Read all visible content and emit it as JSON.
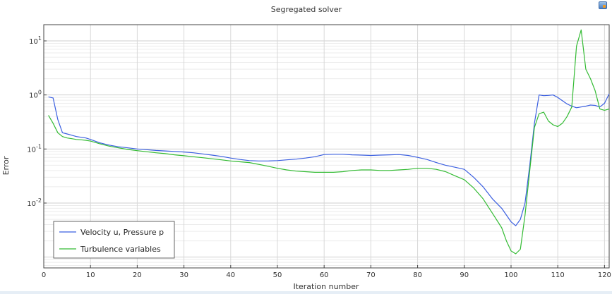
{
  "chart_data": {
    "type": "line",
    "title": "Segregated solver",
    "xlabel": "Iteration number",
    "ylabel": "Error",
    "xlim": [
      0,
      121
    ],
    "ylim_log10": [
      -3.2,
      1.3
    ],
    "yscale": "log",
    "grid": true,
    "legend_position": "bottom-left",
    "x_ticks": [
      "0",
      "10",
      "20",
      "30",
      "40",
      "50",
      "60",
      "70",
      "80",
      "90",
      "100",
      "110",
      "120"
    ],
    "y_ticks": [
      {
        "base": "10",
        "exp": "1",
        "value": 10
      },
      {
        "base": "10",
        "exp": "0",
        "value": 1
      },
      {
        "base": "10",
        "exp": "-1",
        "value": 0.1
      },
      {
        "base": "10",
        "exp": "-2",
        "value": 0.01
      }
    ],
    "series": [
      {
        "name": "Velocity u, Pressure p",
        "color": "#3b5fe0",
        "x": [
          1,
          2,
          3,
          4,
          5,
          6,
          7,
          8,
          9,
          10,
          12,
          14,
          16,
          18,
          20,
          22,
          24,
          26,
          28,
          30,
          32,
          34,
          36,
          38,
          40,
          42,
          44,
          46,
          48,
          50,
          52,
          54,
          56,
          58,
          60,
          62,
          64,
          66,
          68,
          70,
          72,
          74,
          76,
          78,
          80,
          82,
          84,
          86,
          88,
          90,
          92,
          94,
          96,
          98,
          99,
          100,
          101,
          102,
          103,
          104,
          105,
          106,
          107,
          108,
          109,
          110,
          111,
          112,
          113,
          114,
          115,
          116,
          117,
          118,
          119,
          120,
          121
        ],
        "y": [
          0.92,
          0.88,
          0.35,
          0.2,
          0.19,
          0.18,
          0.17,
          0.165,
          0.16,
          0.15,
          0.13,
          0.118,
          0.11,
          0.105,
          0.1,
          0.097,
          0.094,
          0.092,
          0.09,
          0.088,
          0.085,
          0.081,
          0.077,
          0.073,
          0.068,
          0.064,
          0.061,
          0.06,
          0.06,
          0.061,
          0.063,
          0.065,
          0.068,
          0.072,
          0.079,
          0.08,
          0.08,
          0.078,
          0.077,
          0.076,
          0.077,
          0.078,
          0.079,
          0.076,
          0.07,
          0.064,
          0.056,
          0.05,
          0.046,
          0.042,
          0.03,
          0.02,
          0.012,
          0.008,
          0.006,
          0.0045,
          0.0038,
          0.005,
          0.01,
          0.05,
          0.3,
          1.0,
          0.97,
          0.98,
          1.0,
          0.9,
          0.78,
          0.68,
          0.62,
          0.58,
          0.6,
          0.62,
          0.65,
          0.64,
          0.6,
          0.7,
          1.05
        ]
      },
      {
        "name": "Turbulence variables",
        "color": "#33bb33",
        "x": [
          1,
          2,
          3,
          4,
          5,
          6,
          7,
          8,
          9,
          10,
          12,
          14,
          16,
          18,
          20,
          22,
          24,
          26,
          28,
          30,
          32,
          34,
          36,
          38,
          40,
          42,
          44,
          46,
          48,
          50,
          52,
          54,
          56,
          58,
          60,
          62,
          64,
          66,
          68,
          70,
          72,
          74,
          76,
          78,
          80,
          82,
          84,
          86,
          88,
          90,
          92,
          94,
          96,
          98,
          99,
          100,
          101,
          102,
          103,
          104,
          105,
          106,
          107,
          108,
          109,
          110,
          111,
          112,
          113,
          114,
          115,
          116,
          117,
          118,
          119,
          120,
          121
        ],
        "y": [
          0.42,
          0.3,
          0.2,
          0.17,
          0.16,
          0.155,
          0.15,
          0.148,
          0.145,
          0.14,
          0.125,
          0.113,
          0.105,
          0.098,
          0.093,
          0.089,
          0.085,
          0.082,
          0.078,
          0.075,
          0.072,
          0.069,
          0.066,
          0.063,
          0.06,
          0.058,
          0.056,
          0.052,
          0.048,
          0.044,
          0.041,
          0.039,
          0.038,
          0.037,
          0.037,
          0.037,
          0.038,
          0.04,
          0.041,
          0.041,
          0.04,
          0.04,
          0.041,
          0.042,
          0.044,
          0.044,
          0.042,
          0.038,
          0.032,
          0.027,
          0.019,
          0.012,
          0.0065,
          0.0035,
          0.002,
          0.0013,
          0.00115,
          0.0014,
          0.006,
          0.04,
          0.25,
          0.45,
          0.48,
          0.33,
          0.28,
          0.26,
          0.3,
          0.4,
          0.6,
          8.0,
          16.0,
          3.0,
          2.0,
          1.2,
          0.55,
          0.52,
          0.55
        ]
      }
    ]
  }
}
